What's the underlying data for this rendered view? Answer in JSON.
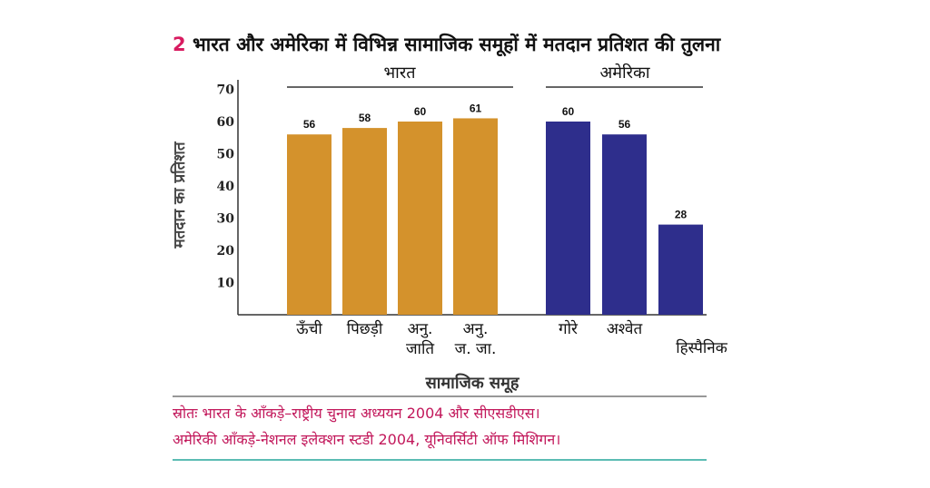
{
  "chart_data": {
    "type": "bar",
    "figure_number": "2",
    "title": "भारत और अमेरिका में विभिन्न सामाजिक समूहों में मतदान प्रतिशत की तुलना",
    "ylabel": "मतदान का प्रतिशत",
    "xlabel": "सामाजिक समूह",
    "ylim": [
      0,
      70
    ],
    "yticks": [
      10,
      20,
      30,
      40,
      50,
      60,
      70
    ],
    "grid": false,
    "groups": [
      {
        "name": "भारत",
        "color": "#d4922c",
        "categories": [
          [
            "ऊँची"
          ],
          [
            "पिछड़ी"
          ],
          [
            "अनु.",
            "जाति"
          ],
          [
            "अनु.",
            "ज. जा."
          ]
        ],
        "values": [
          56,
          58,
          60,
          61
        ]
      },
      {
        "name": "अमेरिका",
        "color": "#2e2e8c",
        "categories": [
          [
            "गोरे"
          ],
          [
            "अश्वेत"
          ],
          [
            "हिस्पैनिक"
          ]
        ],
        "values": [
          60,
          56,
          28
        ]
      }
    ]
  },
  "source": {
    "line1": "स्रोतः भारत के आँकड़े–राष्ट्रीय चुनाव अध्ययन 2004 और सीएसडीएस।",
    "line2": "अमेरिकी आँकड़े-नेशनल इलेक्शन स्टडी 2004, यूनिवर्सिटी ऑफ मिशिगन।",
    "color": "#c2185b"
  },
  "colors": {
    "figure_number": "#d81b60",
    "bottom_rule": "#26a69a"
  }
}
